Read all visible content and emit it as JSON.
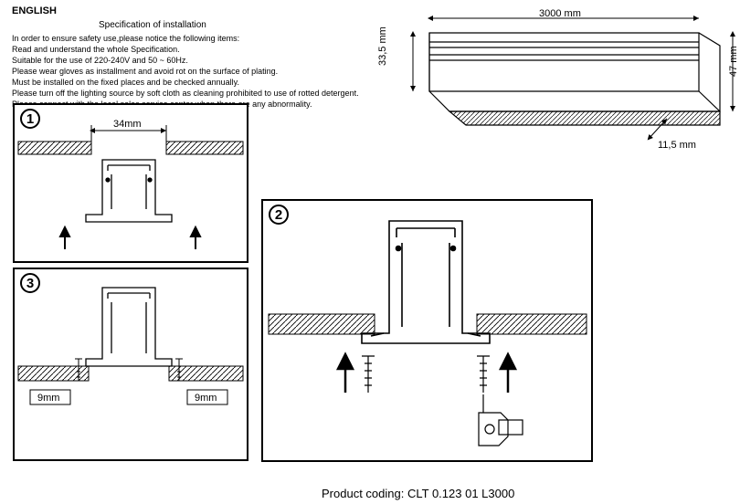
{
  "language": "ENGLISH",
  "spec_title": "Specification of installation",
  "spec_lines": [
    "In order to ensure safety use,please notice the following items:",
    "Read and understand the whole Specification.",
    "Suitable for the use of 220-240V and 50 ~ 60Hz.",
    "Please wear gloves as installment and avoid rot on the surface of plating.",
    "Must be installed on the fixed places and be checked annually.",
    "Please turn off the lighting source by soft cloth as cleaning prohibited to use of rotted detergent.",
    "Please connect with the local sales service center when there are any abnormality."
  ],
  "product_coding_label": "Product coding:",
  "product_coding_value": "CLT 0.123 01 L3000",
  "step1_num": "1",
  "step2_num": "2",
  "step3_num": "3",
  "dims": {
    "length": "3000 mm",
    "height_body": "33,5 mm",
    "height_total": "47 mm",
    "depth": "11,5 mm",
    "gap_top": "34mm",
    "gap_bottom_left": "9mm",
    "gap_bottom_right": "9mm"
  },
  "colors": {
    "line": "#000000",
    "hatch": "#000000",
    "bg": "#ffffff"
  }
}
